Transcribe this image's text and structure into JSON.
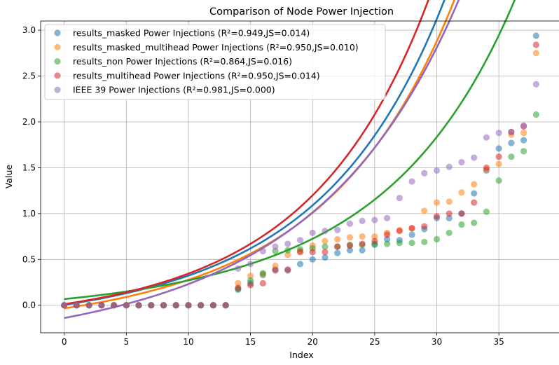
{
  "chart_data": {
    "type": "scatter",
    "title": "Comparison of Node Power Injection",
    "xlabel": "Index",
    "ylabel": "Value",
    "xlim": [
      -1.9,
      39.9
    ],
    "ylim": [
      -0.3,
      3.1
    ],
    "xticks": [
      0,
      5,
      10,
      15,
      20,
      25,
      30,
      35
    ],
    "yticks": [
      0.0,
      0.5,
      1.0,
      1.5,
      2.0,
      2.5,
      3.0
    ],
    "grid": true,
    "legend_position": "top-left",
    "x": [
      0,
      1,
      2,
      3,
      4,
      5,
      6,
      7,
      8,
      9,
      10,
      11,
      12,
      13,
      14,
      15,
      16,
      17,
      18,
      19,
      20,
      21,
      22,
      23,
      24,
      25,
      26,
      27,
      28,
      29,
      30,
      31,
      32,
      33,
      34,
      35,
      36,
      37,
      38
    ],
    "series": [
      {
        "name": "results_masked Power Injections (R²=0.949,JS=0.014)",
        "color": "#1f77b4",
        "values": [
          0,
          0,
          0,
          0,
          0,
          0,
          0,
          0,
          0,
          0,
          0,
          0,
          0,
          0,
          0.17,
          0.24,
          0.33,
          0.39,
          0.38,
          0.45,
          0.5,
          0.52,
          0.57,
          0.6,
          0.6,
          0.66,
          0.72,
          0.71,
          0.77,
          0.83,
          0.95,
          0.95,
          1.0,
          1.22,
          1.47,
          1.71,
          1.77,
          1.8,
          2.94
        ],
        "fit": [
          0.0049,
          0.4026,
          0.4318,
          0.0864,
          1.35
        ]
      },
      {
        "name": "results_masked_multihead Power Injections (R²=0.950,JS=0.010)",
        "color": "#ff7f0e",
        "values": [
          0,
          0,
          0,
          0,
          0,
          0,
          0,
          0,
          0,
          0,
          0,
          0,
          0,
          0,
          0.24,
          0.32,
          0.34,
          0.43,
          0.55,
          0.59,
          0.65,
          0.7,
          0.72,
          0.74,
          0.75,
          0.75,
          0.79,
          0.82,
          0.84,
          1.03,
          1.12,
          1.13,
          1.23,
          1.32,
          1.48,
          1.54,
          1.86,
          1.88,
          2.75
        ],
        "fit": [
          -0.0332,
          0.3878,
          0.4493,
          0.0881,
          1.3105
        ]
      },
      {
        "name": "results_non Power Injections (R²=0.864,JS=0.016)",
        "color": "#2ca02c",
        "values": [
          0,
          0,
          0,
          0,
          0,
          0,
          0,
          0,
          0,
          0,
          0,
          0,
          0,
          0,
          0.18,
          0.27,
          0.35,
          0.59,
          0.6,
          0.61,
          0.62,
          0.64,
          0.64,
          0.66,
          0.66,
          0.67,
          0.67,
          0.68,
          0.68,
          0.69,
          0.72,
          0.79,
          0.88,
          0.9,
          1.02,
          1.36,
          1.62,
          1.68,
          2.08
        ],
        "fit": [
          0.0673,
          0.2823,
          0.2831,
          0.0574,
          1.2715
        ]
      },
      {
        "name": "results_multihead Power Injections (R²=0.950,JS=0.014)",
        "color": "#d62728",
        "values": [
          0,
          0,
          0,
          0,
          0,
          0,
          0,
          0,
          0,
          0,
          0,
          0,
          0,
          0,
          0.19,
          0.22,
          0.24,
          0.38,
          0.39,
          0.58,
          0.58,
          0.58,
          0.64,
          0.65,
          0.67,
          0.7,
          0.77,
          0.81,
          0.84,
          0.86,
          0.97,
          1.0,
          1.0,
          1.12,
          1.5,
          1.62,
          1.89,
          1.95,
          2.84
        ],
        "fit": [
          0.0121,
          0.3549,
          0.417,
          0.0965,
          1.3768
        ]
      },
      {
        "name": "IEEE 39 Power Injections (R²=0.981,JS=0.000)",
        "color": "#9467bd",
        "values": [
          0,
          0,
          0,
          0,
          0,
          0,
          0,
          0,
          0,
          0,
          0,
          0,
          0,
          0,
          0.4,
          0.45,
          0.59,
          0.64,
          0.67,
          0.71,
          0.79,
          0.81,
          0.82,
          0.89,
          0.92,
          0.93,
          0.95,
          1.17,
          1.35,
          1.44,
          1.47,
          1.51,
          1.56,
          1.61,
          1.83,
          1.88,
          1.89,
          1.96,
          2.41
        ],
        "fit": [
          -0.1389,
          0.4986,
          0.3882,
          0.1253,
          1.1751
        ]
      }
    ]
  }
}
